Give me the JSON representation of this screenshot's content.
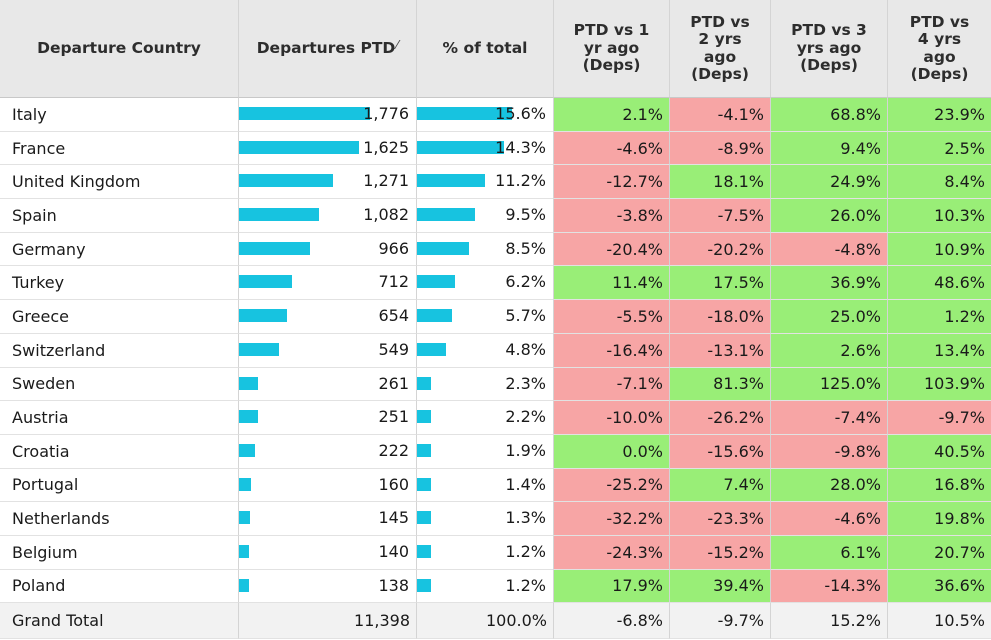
{
  "headers": {
    "country": "Departure Country",
    "departures": "Departures PTD",
    "pct_total": "% of total",
    "vs1": "PTD vs 1\nyr ago\n(Deps)",
    "vs2": "PTD vs\n2 yrs\nago\n(Deps)",
    "vs3": "PTD vs 3\nyrs ago\n(Deps)",
    "vs4": "PTD vs\n4 yrs\nago\n(Deps)"
  },
  "colors": {
    "bar": "#17c3e0",
    "positive": "#99ee77",
    "negative": "#f7a5a5"
  },
  "max_departures": 1776,
  "max_pct": 15.6,
  "rows": [
    {
      "country": "Italy",
      "departures": 1776,
      "departures_label": "1,776",
      "pct": 15.6,
      "pct_label": "15.6%",
      "vs1": "2.1%",
      "vs2": "-4.1%",
      "vs3": "68.8%",
      "vs4": "23.9%"
    },
    {
      "country": "France",
      "departures": 1625,
      "departures_label": "1,625",
      "pct": 14.3,
      "pct_label": "14.3%",
      "vs1": "-4.6%",
      "vs2": "-8.9%",
      "vs3": "9.4%",
      "vs4": "2.5%"
    },
    {
      "country": "United Kingdom",
      "departures": 1271,
      "departures_label": "1,271",
      "pct": 11.2,
      "pct_label": "11.2%",
      "vs1": "-12.7%",
      "vs2": "18.1%",
      "vs3": "24.9%",
      "vs4": "8.4%"
    },
    {
      "country": "Spain",
      "departures": 1082,
      "departures_label": "1,082",
      "pct": 9.5,
      "pct_label": "9.5%",
      "vs1": "-3.8%",
      "vs2": "-7.5%",
      "vs3": "26.0%",
      "vs4": "10.3%"
    },
    {
      "country": "Germany",
      "departures": 966,
      "departures_label": "966",
      "pct": 8.5,
      "pct_label": "8.5%",
      "vs1": "-20.4%",
      "vs2": "-20.2%",
      "vs3": "-4.8%",
      "vs4": "10.9%"
    },
    {
      "country": "Turkey",
      "departures": 712,
      "departures_label": "712",
      "pct": 6.2,
      "pct_label": "6.2%",
      "vs1": "11.4%",
      "vs2": "17.5%",
      "vs3": "36.9%",
      "vs4": "48.6%"
    },
    {
      "country": "Greece",
      "departures": 654,
      "departures_label": "654",
      "pct": 5.7,
      "pct_label": "5.7%",
      "vs1": "-5.5%",
      "vs2": "-18.0%",
      "vs3": "25.0%",
      "vs4": "1.2%"
    },
    {
      "country": "Switzerland",
      "departures": 549,
      "departures_label": "549",
      "pct": 4.8,
      "pct_label": "4.8%",
      "vs1": "-16.4%",
      "vs2": "-13.1%",
      "vs3": "2.6%",
      "vs4": "13.4%"
    },
    {
      "country": "Sweden",
      "departures": 261,
      "departures_label": "261",
      "pct": 2.3,
      "pct_label": "2.3%",
      "vs1": "-7.1%",
      "vs2": "81.3%",
      "vs3": "125.0%",
      "vs4": "103.9%"
    },
    {
      "country": "Austria",
      "departures": 251,
      "departures_label": "251",
      "pct": 2.2,
      "pct_label": "2.2%",
      "vs1": "-10.0%",
      "vs2": "-26.2%",
      "vs3": "-7.4%",
      "vs4": "-9.7%"
    },
    {
      "country": "Croatia",
      "departures": 222,
      "departures_label": "222",
      "pct": 1.9,
      "pct_label": "1.9%",
      "vs1": "0.0%",
      "vs2": "-15.6%",
      "vs3": "-9.8%",
      "vs4": "40.5%"
    },
    {
      "country": "Portugal",
      "departures": 160,
      "departures_label": "160",
      "pct": 1.4,
      "pct_label": "1.4%",
      "vs1": "-25.2%",
      "vs2": "7.4%",
      "vs3": "28.0%",
      "vs4": "16.8%"
    },
    {
      "country": "Netherlands",
      "departures": 145,
      "departures_label": "145",
      "pct": 1.3,
      "pct_label": "1.3%",
      "vs1": "-32.2%",
      "vs2": "-23.3%",
      "vs3": "-4.6%",
      "vs4": "19.8%"
    },
    {
      "country": "Belgium",
      "departures": 140,
      "departures_label": "140",
      "pct": 1.2,
      "pct_label": "1.2%",
      "vs1": "-24.3%",
      "vs2": "-15.2%",
      "vs3": "6.1%",
      "vs4": "20.7%"
    },
    {
      "country": "Poland",
      "departures": 138,
      "departures_label": "138",
      "pct": 1.2,
      "pct_label": "1.2%",
      "vs1": "17.9%",
      "vs2": "39.4%",
      "vs3": "-14.3%",
      "vs4": "36.6%"
    }
  ],
  "total": {
    "label": "Grand Total",
    "departures": "11,398",
    "pct": "100.0%",
    "vs1": "-6.8%",
    "vs2": "-9.7%",
    "vs3": "15.2%",
    "vs4": "10.5%"
  }
}
